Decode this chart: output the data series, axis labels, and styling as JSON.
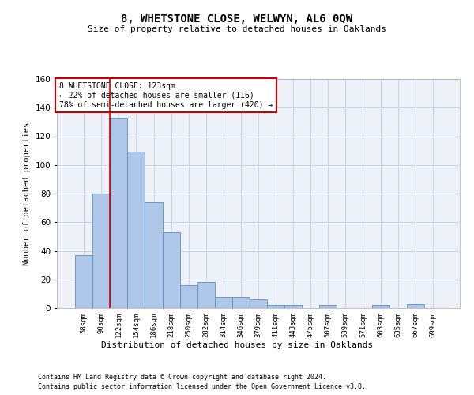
{
  "title": "8, WHETSTONE CLOSE, WELWYN, AL6 0QW",
  "subtitle": "Size of property relative to detached houses in Oaklands",
  "xlabel": "Distribution of detached houses by size in Oaklands",
  "ylabel": "Number of detached properties",
  "bin_labels": [
    "58sqm",
    "90sqm",
    "122sqm",
    "154sqm",
    "186sqm",
    "218sqm",
    "250sqm",
    "282sqm",
    "314sqm",
    "346sqm",
    "379sqm",
    "411sqm",
    "443sqm",
    "475sqm",
    "507sqm",
    "539sqm",
    "571sqm",
    "603sqm",
    "635sqm",
    "667sqm",
    "699sqm"
  ],
  "bar_values": [
    37,
    80,
    133,
    109,
    74,
    53,
    16,
    18,
    8,
    8,
    6,
    2,
    2,
    0,
    2,
    0,
    0,
    2,
    0,
    3,
    0
  ],
  "bar_color": "#aec6e8",
  "bar_edge_color": "#5a8fc0",
  "grid_color": "#c8d4e8",
  "background_color": "#eef2f8",
  "vline_color": "#cc0000",
  "annotation_text": "8 WHETSTONE CLOSE: 123sqm\n← 22% of detached houses are smaller (116)\n78% of semi-detached houses are larger (420) →",
  "annotation_box_color": "white",
  "annotation_box_edge": "#cc0000",
  "ylim": [
    0,
    160
  ],
  "yticks": [
    0,
    20,
    40,
    60,
    80,
    100,
    120,
    140,
    160
  ],
  "footer_line1": "Contains HM Land Registry data © Crown copyright and database right 2024.",
  "footer_line2": "Contains public sector information licensed under the Open Government Licence v3.0."
}
